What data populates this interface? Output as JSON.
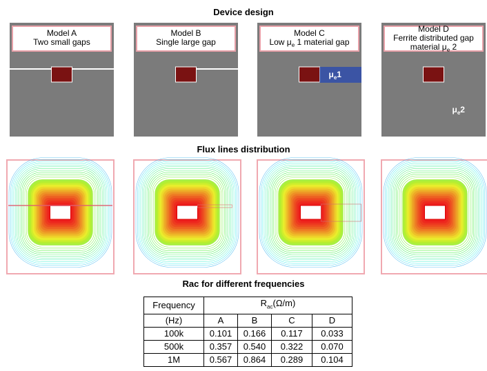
{
  "device_design": {
    "title": "Device design",
    "models": [
      {
        "name": "Model A",
        "desc": [
          "Two small gaps"
        ]
      },
      {
        "name": "Model B",
        "desc": [
          "Single large gap"
        ]
      },
      {
        "name": "Model C",
        "desc": [
          {
            "pre": "Low μ",
            "sub": "e",
            "post": " 1 material gap"
          }
        ],
        "marker": {
          "pre": "μ",
          "sub": "e",
          "post": "1"
        }
      },
      {
        "name": "Model D",
        "desc": [
          "Ferrite distributed gap",
          {
            "pre": "material μ",
            "sub": "e",
            "post": " 2"
          }
        ],
        "marker": {
          "pre": "μ",
          "sub": "e",
          "post": "2"
        }
      }
    ]
  },
  "flux": {
    "title": "Flux lines distribution"
  },
  "table": {
    "title": "Rac for different frequencies",
    "header": {
      "frequency": "Frequency",
      "unit": "(Hz)",
      "group": {
        "pre": "R",
        "sub": "ac",
        "post": "(Ω/m)"
      },
      "columns": [
        "A",
        "B",
        "C",
        "D"
      ]
    },
    "rows": [
      [
        "100k",
        "0.101",
        "0.166",
        "0.117",
        "0.033"
      ],
      [
        "500k",
        "0.357",
        "0.540",
        "0.322",
        "0.070"
      ],
      [
        "1M",
        "0.567",
        "0.864",
        "0.289",
        "0.104"
      ]
    ]
  }
}
